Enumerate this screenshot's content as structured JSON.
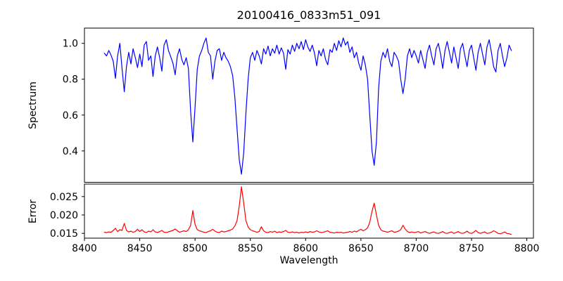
{
  "chart_data": {
    "type": "line",
    "title": "20100416_0833m51_091",
    "xlabel": "Wavelength",
    "xlim": [
      8400,
      8806
    ],
    "x_ticks": [
      8400,
      8450,
      8500,
      8550,
      8600,
      8650,
      8700,
      8750,
      8800
    ],
    "grid": false,
    "legend": "none",
    "panels": [
      {
        "name": "spectrum",
        "ylabel": "Spectrum",
        "ylim": [
          0.225,
          1.085
        ],
        "y_ticks": [
          0.4,
          0.6,
          0.8,
          1.0
        ],
        "y_tick_labels": [
          "0.4",
          "0.6",
          "0.8",
          "1.0"
        ],
        "line_color": "#0000ff"
      },
      {
        "name": "error",
        "ylabel": "Error",
        "ylim": [
          0.0137,
          0.0284
        ],
        "y_ticks": [
          0.015,
          0.02,
          0.025
        ],
        "y_tick_labels": [
          "0.015",
          "0.020",
          "0.025"
        ],
        "line_color": "#ff0000"
      }
    ],
    "x": [
      8418,
      8420,
      8422,
      8424,
      8426,
      8428,
      8430,
      8432,
      8434,
      8436,
      8438,
      8440,
      8442,
      8444,
      8446,
      8448,
      8450,
      8452,
      8454,
      8456,
      8458,
      8460,
      8462,
      8464,
      8466,
      8468,
      8470,
      8472,
      8474,
      8476,
      8478,
      8480,
      8482,
      8484,
      8486,
      8488,
      8490,
      8492,
      8494,
      8496,
      8498,
      8500,
      8502,
      8504,
      8506,
      8508,
      8510,
      8512,
      8514,
      8516,
      8518,
      8520,
      8522,
      8524,
      8526,
      8528,
      8530,
      8532,
      8534,
      8536,
      8538,
      8540,
      8542,
      8544,
      8546,
      8548,
      8550,
      8552,
      8554,
      8556,
      8558,
      8560,
      8562,
      8564,
      8566,
      8568,
      8570,
      8572,
      8574,
      8576,
      8578,
      8580,
      8582,
      8584,
      8586,
      8588,
      8590,
      8592,
      8594,
      8596,
      8598,
      8600,
      8602,
      8604,
      8606,
      8608,
      8610,
      8612,
      8614,
      8616,
      8618,
      8620,
      8622,
      8624,
      8626,
      8628,
      8630,
      8632,
      8634,
      8636,
      8638,
      8640,
      8642,
      8644,
      8646,
      8648,
      8650,
      8652,
      8654,
      8656,
      8658,
      8660,
      8662,
      8664,
      8666,
      8668,
      8670,
      8672,
      8674,
      8676,
      8678,
      8680,
      8682,
      8684,
      8686,
      8688,
      8690,
      8692,
      8694,
      8696,
      8698,
      8700,
      8702,
      8704,
      8706,
      8708,
      8710,
      8712,
      8714,
      8716,
      8718,
      8720,
      8722,
      8724,
      8726,
      8728,
      8730,
      8732,
      8734,
      8736,
      8738,
      8740,
      8742,
      8744,
      8746,
      8748,
      8750,
      8752,
      8754,
      8756,
      8758,
      8760,
      8762,
      8764,
      8766,
      8768,
      8770,
      8772,
      8774,
      8776,
      8778,
      8780,
      8782,
      8784,
      8786
    ],
    "series": [
      {
        "name": "spectrum",
        "panel": 0,
        "color": "#0000ff",
        "values": [
          0.945,
          0.93,
          0.96,
          0.935,
          0.9,
          0.805,
          0.93,
          1.0,
          0.86,
          0.73,
          0.87,
          0.95,
          0.885,
          0.97,
          0.92,
          0.865,
          0.94,
          0.87,
          0.99,
          1.01,
          0.905,
          0.93,
          0.815,
          0.93,
          0.98,
          0.92,
          0.845,
          0.99,
          1.02,
          0.96,
          0.925,
          0.89,
          0.825,
          0.93,
          0.97,
          0.91,
          0.88,
          0.92,
          0.86,
          0.62,
          0.45,
          0.64,
          0.855,
          0.93,
          0.96,
          1.0,
          1.03,
          0.95,
          0.93,
          0.8,
          0.9,
          0.96,
          0.97,
          0.905,
          0.95,
          0.92,
          0.9,
          0.87,
          0.82,
          0.7,
          0.52,
          0.35,
          0.27,
          0.39,
          0.61,
          0.8,
          0.92,
          0.95,
          0.905,
          0.96,
          0.93,
          0.885,
          0.97,
          0.94,
          0.985,
          0.93,
          0.97,
          0.945,
          0.99,
          0.94,
          0.975,
          0.945,
          0.855,
          0.965,
          0.94,
          0.99,
          0.955,
          1.0,
          0.97,
          1.01,
          0.965,
          1.02,
          0.98,
          0.955,
          0.99,
          0.945,
          0.875,
          0.96,
          0.93,
          0.97,
          0.91,
          0.88,
          0.965,
          0.95,
          1.0,
          0.96,
          1.015,
          0.98,
          1.03,
          0.99,
          1.01,
          0.95,
          0.98,
          0.92,
          0.95,
          0.89,
          0.85,
          0.93,
          0.88,
          0.8,
          0.6,
          0.4,
          0.32,
          0.45,
          0.75,
          0.9,
          0.95,
          0.92,
          0.97,
          0.9,
          0.87,
          0.95,
          0.93,
          0.9,
          0.8,
          0.72,
          0.8,
          0.93,
          0.97,
          0.92,
          0.96,
          0.93,
          0.89,
          0.96,
          0.91,
          0.86,
          0.95,
          0.99,
          0.93,
          0.88,
          0.97,
          1.0,
          0.94,
          0.86,
          0.96,
          1.01,
          0.95,
          0.89,
          0.98,
          0.92,
          0.86,
          0.97,
          1.0,
          0.93,
          0.87,
          0.96,
          0.99,
          0.92,
          0.85,
          0.95,
          1.0,
          0.94,
          0.88,
          0.98,
          1.02,
          0.95,
          0.87,
          0.84,
          0.96,
          1.0,
          0.93,
          0.87,
          0.92,
          0.99,
          0.96
        ]
      },
      {
        "name": "error",
        "panel": 1,
        "color": "#ff0000",
        "values": [
          0.0153,
          0.0152,
          0.0154,
          0.0153,
          0.0158,
          0.0164,
          0.0155,
          0.016,
          0.0158,
          0.0177,
          0.0158,
          0.0154,
          0.0156,
          0.0153,
          0.0155,
          0.0161,
          0.0155,
          0.016,
          0.0154,
          0.0152,
          0.0156,
          0.0154,
          0.016,
          0.0154,
          0.0152,
          0.0155,
          0.0158,
          0.0153,
          0.0152,
          0.0154,
          0.0156,
          0.0158,
          0.0162,
          0.0157,
          0.0153,
          0.0155,
          0.0157,
          0.0155,
          0.016,
          0.0172,
          0.0212,
          0.0175,
          0.016,
          0.0157,
          0.0155,
          0.0153,
          0.0152,
          0.0155,
          0.0157,
          0.0161,
          0.0156,
          0.0153,
          0.0152,
          0.0156,
          0.0154,
          0.0155,
          0.0157,
          0.0159,
          0.0162,
          0.017,
          0.0185,
          0.0225,
          0.0277,
          0.0232,
          0.0185,
          0.0167,
          0.016,
          0.0157,
          0.0155,
          0.0153,
          0.0155,
          0.0168,
          0.0157,
          0.0153,
          0.0152,
          0.0155,
          0.0153,
          0.0156,
          0.0152,
          0.0154,
          0.0153,
          0.0155,
          0.0158,
          0.0153,
          0.0152,
          0.0154,
          0.0152,
          0.0153,
          0.0151,
          0.0153,
          0.0152,
          0.0154,
          0.0152,
          0.0155,
          0.0153,
          0.0154,
          0.0157,
          0.0154,
          0.0152,
          0.0153,
          0.0155,
          0.0157,
          0.0153,
          0.0152,
          0.0151,
          0.0153,
          0.0152,
          0.0153,
          0.0151,
          0.0152,
          0.0153,
          0.0155,
          0.0153,
          0.0156,
          0.0154,
          0.0158,
          0.0161,
          0.0157,
          0.016,
          0.0165,
          0.018,
          0.021,
          0.0232,
          0.02,
          0.0172,
          0.016,
          0.0156,
          0.0155,
          0.0153,
          0.0155,
          0.0157,
          0.0153,
          0.0154,
          0.0156,
          0.016,
          0.0172,
          0.0162,
          0.0155,
          0.0152,
          0.0154,
          0.0152,
          0.0153,
          0.0155,
          0.0151,
          0.0153,
          0.0155,
          0.0152,
          0.015,
          0.0152,
          0.0154,
          0.0151,
          0.015,
          0.0152,
          0.0155,
          0.0151,
          0.015,
          0.0152,
          0.0154,
          0.015,
          0.0152,
          0.0155,
          0.0151,
          0.015,
          0.0152,
          0.0156,
          0.0151,
          0.015,
          0.0153,
          0.0158,
          0.0152,
          0.015,
          0.0152,
          0.0154,
          0.015,
          0.0151,
          0.0153,
          0.0157,
          0.0154,
          0.015,
          0.0149,
          0.0151,
          0.0154,
          0.015,
          0.0149,
          0.0147
        ]
      }
    ]
  }
}
